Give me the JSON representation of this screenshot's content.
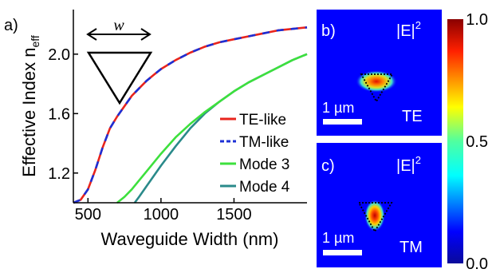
{
  "chart_data": [
    {
      "type": "line",
      "panel_label": "a)",
      "xlabel": "Waveguide Width (nm)",
      "ylabel": "Effective Index n",
      "ylabel_sub": "eff",
      "xlim": [
        400,
        2000
      ],
      "ylim": [
        1.0,
        2.3
      ],
      "xticks": [
        "500",
        "1000",
        "1500"
      ],
      "xtick_values": [
        500,
        1000,
        1500
      ],
      "yticks": [
        "1.2",
        "1.6",
        "2.0"
      ],
      "ytick_values": [
        1.2,
        1.6,
        2.0
      ],
      "inset_label": "w",
      "series": [
        {
          "name": "TE-like",
          "color": "#e8241c",
          "dashed": false,
          "x": [
            400,
            450,
            500,
            550,
            600,
            650,
            700,
            750,
            800,
            850,
            900,
            950,
            1000,
            1100,
            1200,
            1300,
            1400,
            1500,
            1600,
            1700,
            1800,
            1900,
            2000
          ],
          "y": [
            1.0,
            1.02,
            1.09,
            1.22,
            1.37,
            1.5,
            1.58,
            1.65,
            1.72,
            1.77,
            1.82,
            1.86,
            1.9,
            1.96,
            2.01,
            2.05,
            2.08,
            2.1,
            2.12,
            2.14,
            2.16,
            2.17,
            2.18
          ]
        },
        {
          "name": "TM-like",
          "color": "#1c2fd6",
          "dashed": true,
          "x": [
            400,
            450,
            500,
            550,
            600,
            650,
            700,
            750,
            800,
            850,
            900,
            950,
            1000,
            1100,
            1200,
            1300,
            1400,
            1500,
            1600,
            1700,
            1800,
            1900,
            2000
          ],
          "y": [
            1.0,
            1.02,
            1.09,
            1.22,
            1.37,
            1.5,
            1.58,
            1.65,
            1.72,
            1.77,
            1.82,
            1.86,
            1.9,
            1.96,
            2.01,
            2.05,
            2.08,
            2.1,
            2.12,
            2.14,
            2.16,
            2.17,
            2.18
          ]
        },
        {
          "name": "Mode 3",
          "color": "#3de03d",
          "dashed": false,
          "x": [
            700,
            750,
            800,
            850,
            900,
            1000,
            1100,
            1200,
            1300,
            1400,
            1500,
            1600,
            1700,
            1800,
            1900,
            2000
          ],
          "y": [
            1.0,
            1.04,
            1.09,
            1.15,
            1.21,
            1.33,
            1.44,
            1.53,
            1.61,
            1.68,
            1.75,
            1.81,
            1.86,
            1.91,
            1.96,
            2.0
          ]
        },
        {
          "name": "Mode 4",
          "color": "#2a8a8a",
          "dashed": false,
          "x": [
            820,
            850,
            900,
            1000,
            1100,
            1200,
            1300,
            1400,
            1500,
            1600,
            1700,
            1800,
            1900,
            2000
          ],
          "y": [
            1.0,
            1.04,
            1.11,
            1.25,
            1.38,
            1.5,
            1.6,
            1.68,
            1.75,
            1.81,
            1.86,
            1.91,
            1.96,
            2.0
          ]
        }
      ]
    },
    {
      "type": "heatmap",
      "panel_label": "b)",
      "field_label": "|E|",
      "field_power": "2",
      "scale_label": "1 µm",
      "mode_label": "TE"
    },
    {
      "type": "heatmap",
      "panel_label": "c)",
      "field_label": "|E|",
      "field_power": "2",
      "scale_label": "1 µm",
      "mode_label": "TM"
    },
    {
      "type": "colorbar",
      "ticks": [
        "1.0",
        "0.5",
        "0.0"
      ],
      "tick_values": [
        1.0,
        0.5,
        0.0
      ],
      "range": [
        0.0,
        1.0
      ]
    }
  ]
}
